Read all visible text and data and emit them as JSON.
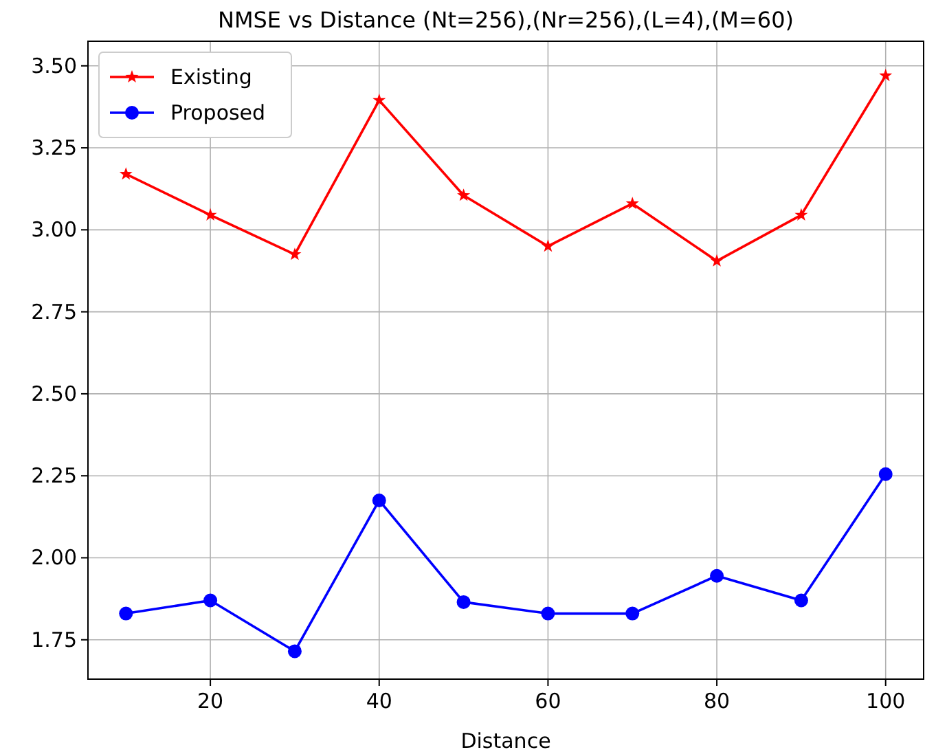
{
  "chart_data": {
    "type": "line",
    "title": "NMSE vs Distance (Nt=256),(Nr=256),(L=4),(M=60)",
    "xlabel": "Distance",
    "x": [
      10,
      20,
      30,
      40,
      50,
      60,
      70,
      80,
      90,
      100
    ],
    "series": [
      {
        "name": "Existing",
        "color": "#ff0000",
        "marker": "star",
        "values": [
          3.17,
          3.045,
          2.925,
          3.395,
          3.105,
          2.95,
          3.08,
          2.905,
          3.045,
          3.47
        ]
      },
      {
        "name": "Proposed",
        "color": "#0000ff",
        "marker": "circle",
        "values": [
          1.83,
          1.87,
          1.715,
          2.175,
          1.865,
          1.83,
          1.83,
          1.945,
          1.87,
          2.255
        ]
      }
    ],
    "xlim": [
      5.5,
      104.5
    ],
    "xticks": [
      20,
      40,
      60,
      80,
      100
    ],
    "ylim": [
      1.63,
      3.575
    ],
    "yticks": [
      {
        "value": 1.75,
        "label": "1.75"
      },
      {
        "value": 2.0,
        "label": "2.00"
      },
      {
        "value": 2.25,
        "label": "2.25"
      },
      {
        "value": 2.5,
        "label": "2.50"
      },
      {
        "value": 2.75,
        "label": "2.75"
      },
      {
        "value": 3.0,
        "label": "3.00"
      },
      {
        "value": 3.25,
        "label": "3.25"
      },
      {
        "value": 3.5,
        "label": "3.50"
      }
    ],
    "grid": true,
    "legend": "top left",
    "line_style": "solid"
  }
}
